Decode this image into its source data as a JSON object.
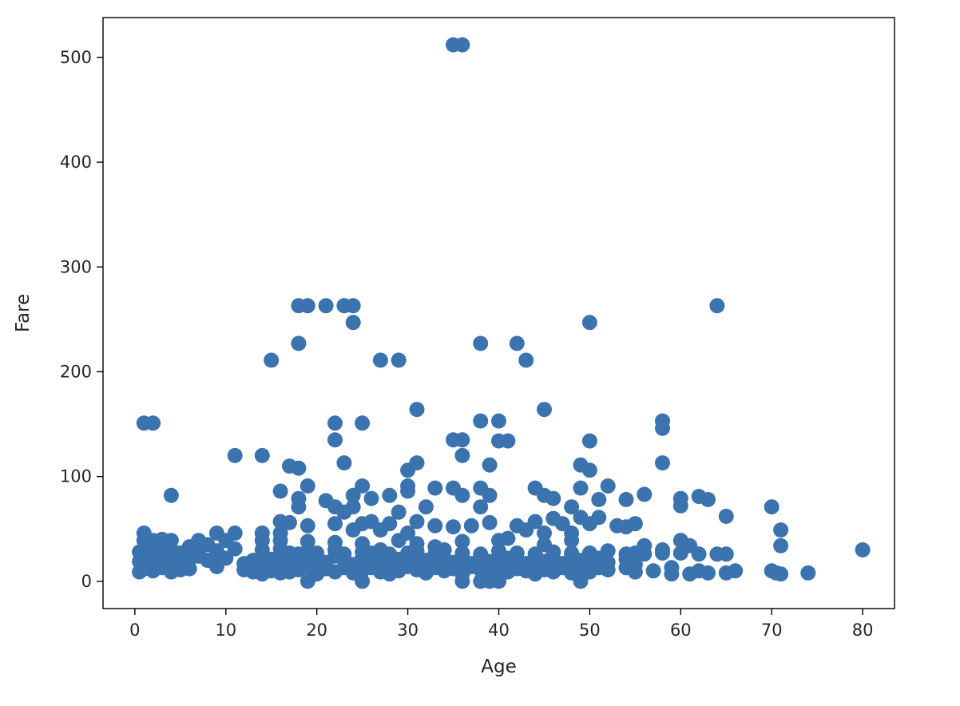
{
  "chart_data": {
    "type": "scatter",
    "title": "",
    "xlabel": "Age",
    "ylabel": "Fare",
    "xlim": [
      -3.5,
      83.5
    ],
    "ylim": [
      -26,
      538
    ],
    "xticks": [
      0,
      10,
      20,
      30,
      40,
      50,
      60,
      70,
      80
    ],
    "yticks": [
      0,
      100,
      200,
      300,
      400,
      500
    ],
    "grid": false,
    "legend": "none",
    "marker_color": "#3b73af",
    "points": [
      [
        35,
        512
      ],
      [
        36,
        512
      ],
      [
        18,
        263
      ],
      [
        19,
        263
      ],
      [
        21,
        263
      ],
      [
        23,
        263
      ],
      [
        24,
        263
      ],
      [
        64,
        263
      ],
      [
        24,
        247
      ],
      [
        50,
        247
      ],
      [
        18,
        227
      ],
      [
        38,
        227
      ],
      [
        42,
        227
      ],
      [
        15,
        211
      ],
      [
        27,
        211
      ],
      [
        29,
        211
      ],
      [
        43,
        211
      ],
      [
        31,
        164
      ],
      [
        45,
        164
      ],
      [
        1,
        151
      ],
      [
        2,
        151
      ],
      [
        22,
        151
      ],
      [
        25,
        151
      ],
      [
        38,
        153
      ],
      [
        40,
        153
      ],
      [
        58,
        153
      ],
      [
        58,
        146
      ],
      [
        22,
        135
      ],
      [
        35,
        135
      ],
      [
        36,
        135
      ],
      [
        40,
        134
      ],
      [
        41,
        134
      ],
      [
        50,
        134
      ],
      [
        11,
        120
      ],
      [
        14,
        120
      ],
      [
        36,
        120
      ],
      [
        17,
        110
      ],
      [
        18,
        108
      ],
      [
        23,
        113
      ],
      [
        31,
        113
      ],
      [
        39,
        111
      ],
      [
        49,
        111
      ],
      [
        50,
        106
      ],
      [
        58,
        113
      ],
      [
        30,
        106
      ],
      [
        16,
        86
      ],
      [
        19,
        91
      ],
      [
        25,
        91
      ],
      [
        30,
        91
      ],
      [
        33,
        89
      ],
      [
        35,
        89
      ],
      [
        38,
        89
      ],
      [
        44,
        89
      ],
      [
        49,
        89
      ],
      [
        52,
        91
      ],
      [
        4,
        82
      ],
      [
        18,
        79
      ],
      [
        21,
        77
      ],
      [
        24,
        82
      ],
      [
        26,
        79
      ],
      [
        28,
        82
      ],
      [
        30,
        86
      ],
      [
        36,
        82
      ],
      [
        39,
        82
      ],
      [
        45,
        82
      ],
      [
        46,
        79
      ],
      [
        51,
        78
      ],
      [
        54,
        78
      ],
      [
        56,
        83
      ],
      [
        60,
        79
      ],
      [
        62,
        81
      ],
      [
        63,
        78
      ],
      [
        18,
        71
      ],
      [
        22,
        71
      ],
      [
        24,
        71
      ],
      [
        29,
        66
      ],
      [
        32,
        71
      ],
      [
        38,
        71
      ],
      [
        48,
        71
      ],
      [
        60,
        72
      ],
      [
        70,
        71
      ],
      [
        23,
        66
      ],
      [
        46,
        60
      ],
      [
        49,
        61
      ],
      [
        51,
        61
      ],
      [
        53,
        53
      ],
      [
        54,
        52
      ],
      [
        55,
        55
      ],
      [
        65,
        62
      ],
      [
        71,
        49
      ],
      [
        16,
        57
      ],
      [
        17,
        56
      ],
      [
        19,
        53
      ],
      [
        22,
        55
      ],
      [
        25,
        55
      ],
      [
        26,
        57
      ],
      [
        28,
        55
      ],
      [
        31,
        57
      ],
      [
        33,
        53
      ],
      [
        35,
        52
      ],
      [
        37,
        53
      ],
      [
        39,
        56
      ],
      [
        42,
        53
      ],
      [
        43,
        49
      ],
      [
        44,
        57
      ],
      [
        47,
        55
      ],
      [
        50,
        55
      ],
      [
        1,
        46
      ],
      [
        9,
        46
      ],
      [
        11,
        46
      ],
      [
        14,
        46
      ],
      [
        16,
        46
      ],
      [
        24,
        49
      ],
      [
        27,
        49
      ],
      [
        30,
        46
      ],
      [
        41,
        41
      ],
      [
        45,
        46
      ],
      [
        48,
        46
      ],
      [
        1,
        39
      ],
      [
        2,
        39
      ],
      [
        3,
        40
      ],
      [
        4,
        39
      ],
      [
        6,
        33
      ],
      [
        7,
        39
      ],
      [
        8,
        35
      ],
      [
        10,
        39
      ],
      [
        14,
        39
      ],
      [
        16,
        39
      ],
      [
        19,
        38
      ],
      [
        22,
        37
      ],
      [
        25,
        36
      ],
      [
        29,
        39
      ],
      [
        31,
        36
      ],
      [
        33,
        33
      ],
      [
        36,
        38
      ],
      [
        40,
        39
      ],
      [
        45,
        35
      ],
      [
        48,
        39
      ],
      [
        56,
        34
      ],
      [
        58,
        30
      ],
      [
        60,
        39
      ],
      [
        61,
        34
      ],
      [
        71,
        34
      ],
      [
        80,
        30
      ],
      [
        0.5,
        28
      ],
      [
        1,
        29
      ],
      [
        2,
        27
      ],
      [
        3,
        31
      ],
      [
        4,
        30
      ],
      [
        5,
        27
      ],
      [
        7,
        27
      ],
      [
        9,
        29
      ],
      [
        11,
        31
      ],
      [
        14,
        30
      ],
      [
        16,
        31
      ],
      [
        17,
        27
      ],
      [
        18,
        26
      ],
      [
        19,
        29
      ],
      [
        20,
        27
      ],
      [
        22,
        30
      ],
      [
        23,
        26
      ],
      [
        25,
        28
      ],
      [
        26,
        27
      ],
      [
        27,
        30
      ],
      [
        28,
        26
      ],
      [
        30,
        27
      ],
      [
        31,
        29
      ],
      [
        33,
        26
      ],
      [
        34,
        30
      ],
      [
        36,
        27
      ],
      [
        38,
        26
      ],
      [
        40,
        29
      ],
      [
        42,
        27
      ],
      [
        44,
        26
      ],
      [
        46,
        28
      ],
      [
        48,
        27
      ],
      [
        50,
        27
      ],
      [
        52,
        29
      ],
      [
        54,
        26
      ],
      [
        55,
        27
      ],
      [
        56,
        26
      ],
      [
        58,
        27
      ],
      [
        60,
        27
      ],
      [
        62,
        26
      ],
      [
        64,
        26
      ],
      [
        65,
        26
      ],
      [
        0.5,
        19
      ],
      [
        1,
        21
      ],
      [
        2,
        17
      ],
      [
        3,
        22
      ],
      [
        4,
        19
      ],
      [
        5,
        16
      ],
      [
        6,
        21
      ],
      [
        7,
        24
      ],
      [
        8,
        20
      ],
      [
        9,
        17
      ],
      [
        10,
        22
      ],
      [
        12,
        17
      ],
      [
        13,
        20
      ],
      [
        14,
        18
      ],
      [
        15,
        21
      ],
      [
        16,
        17
      ],
      [
        17,
        23
      ],
      [
        18,
        19
      ],
      [
        19,
        16
      ],
      [
        20,
        21
      ],
      [
        21,
        18
      ],
      [
        22,
        24
      ],
      [
        23,
        20
      ],
      [
        24,
        16
      ],
      [
        25,
        22
      ],
      [
        26,
        19
      ],
      [
        27,
        23
      ],
      [
        28,
        17
      ],
      [
        29,
        21
      ],
      [
        30,
        18
      ],
      [
        31,
        24
      ],
      [
        32,
        20
      ],
      [
        33,
        16
      ],
      [
        34,
        22
      ],
      [
        35,
        18
      ],
      [
        36,
        21
      ],
      [
        37,
        17
      ],
      [
        38,
        23
      ],
      [
        39,
        19
      ],
      [
        40,
        16
      ],
      [
        41,
        22
      ],
      [
        42,
        20
      ],
      [
        43,
        17
      ],
      [
        44,
        23
      ],
      [
        45,
        19
      ],
      [
        46,
        21
      ],
      [
        47,
        17
      ],
      [
        48,
        24
      ],
      [
        49,
        20
      ],
      [
        50,
        16
      ],
      [
        51,
        22
      ],
      [
        52,
        18
      ],
      [
        54,
        21
      ],
      [
        55,
        16
      ],
      [
        0.5,
        9
      ],
      [
        1,
        12
      ],
      [
        2,
        10
      ],
      [
        3,
        13
      ],
      [
        4,
        9
      ],
      [
        5,
        11
      ],
      [
        6,
        12
      ],
      [
        9,
        14
      ],
      [
        12,
        11
      ],
      [
        13,
        9
      ],
      [
        14,
        12
      ],
      [
        15,
        10
      ],
      [
        16,
        13
      ],
      [
        17,
        9
      ],
      [
        18,
        11
      ],
      [
        19,
        14
      ],
      [
        20,
        10
      ],
      [
        21,
        12
      ],
      [
        22,
        9
      ],
      [
        23,
        13
      ],
      [
        24,
        11
      ],
      [
        25,
        10
      ],
      [
        26,
        13
      ],
      [
        27,
        9
      ],
      [
        28,
        12
      ],
      [
        29,
        10
      ],
      [
        30,
        14
      ],
      [
        31,
        11
      ],
      [
        32,
        9
      ],
      [
        33,
        13
      ],
      [
        34,
        10
      ],
      [
        35,
        12
      ],
      [
        36,
        9
      ],
      [
        37,
        14
      ],
      [
        38,
        11
      ],
      [
        39,
        10
      ],
      [
        40,
        13
      ],
      [
        41,
        9
      ],
      [
        42,
        12
      ],
      [
        43,
        10
      ],
      [
        44,
        14
      ],
      [
        45,
        11
      ],
      [
        46,
        9
      ],
      [
        47,
        13
      ],
      [
        48,
        10
      ],
      [
        49,
        12
      ],
      [
        50,
        9
      ],
      [
        51,
        13
      ],
      [
        52,
        11
      ],
      [
        54,
        13
      ],
      [
        55,
        9
      ],
      [
        57,
        10
      ],
      [
        59,
        13
      ],
      [
        59,
        7
      ],
      [
        61,
        7
      ],
      [
        62,
        10
      ],
      [
        63,
        8
      ],
      [
        65,
        8
      ],
      [
        66,
        10
      ],
      [
        70,
        10
      ],
      [
        70.5,
        8
      ],
      [
        71,
        7
      ],
      [
        74,
        8
      ],
      [
        14,
        7
      ],
      [
        16,
        8
      ],
      [
        20,
        7
      ],
      [
        24,
        8
      ],
      [
        28,
        7
      ],
      [
        32,
        8
      ],
      [
        36,
        7
      ],
      [
        40,
        8
      ],
      [
        44,
        7
      ],
      [
        48,
        8
      ],
      [
        19,
        0
      ],
      [
        25,
        0
      ],
      [
        36,
        0
      ],
      [
        38,
        0
      ],
      [
        39,
        0
      ],
      [
        40,
        0
      ],
      [
        49,
        0
      ]
    ]
  }
}
